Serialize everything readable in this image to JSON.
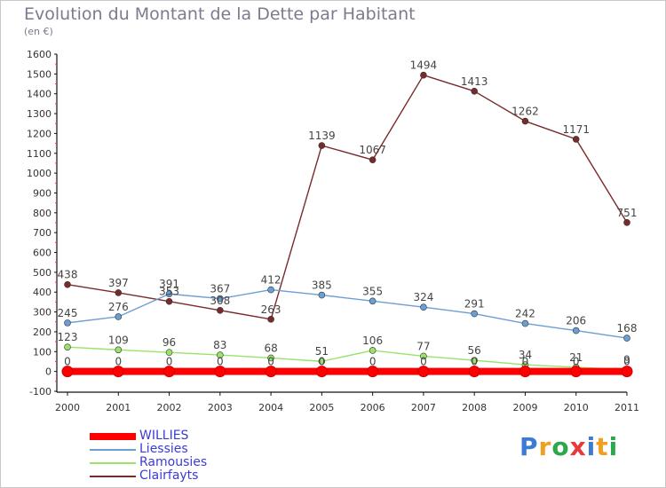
{
  "header": {
    "title": "Evolution du Montant de la Dette par Habitant",
    "subtitle": "(en €)"
  },
  "logo": {
    "text": "Proxiti",
    "colors": [
      "#3a7bd5",
      "#f0a020",
      "#2aa84a",
      "#e83a3a",
      "#3a7bd5",
      "#f0a020",
      "#2aa84a"
    ]
  },
  "chart_data": {
    "type": "line",
    "title": "Evolution du Montant de la Dette par Habitant",
    "subtitle": "(en €)",
    "xlabel": "",
    "ylabel": "",
    "x": [
      "2000",
      "2001",
      "2002",
      "2003",
      "2004",
      "2005",
      "2006",
      "2007",
      "2008",
      "2009",
      "2010",
      "2011"
    ],
    "ylim": [
      -100,
      1600
    ],
    "yticks": [
      "-100",
      "0",
      "100",
      "200",
      "300",
      "400",
      "500",
      "600",
      "700",
      "800",
      "900",
      "1000",
      "1100",
      "1200",
      "1300",
      "1400",
      "1500",
      "1600"
    ],
    "grid": false,
    "legend_position": "bottom-left",
    "series": [
      {
        "name": "WILLIES",
        "color": "#ff0000",
        "values": [
          0,
          0,
          0,
          0,
          0,
          0,
          0,
          0,
          0,
          0,
          0,
          0
        ],
        "labels": [
          "0",
          "0",
          "0",
          "0",
          "0",
          "0",
          "0",
          "0",
          "0",
          "0",
          "0",
          "0"
        ]
      },
      {
        "name": "Liessies",
        "color": "#6a9fd4",
        "values": [
          245,
          276,
          391,
          367,
          412,
          385,
          355,
          324,
          291,
          242,
          206,
          168
        ],
        "labels": [
          "245",
          "276",
          "391",
          "367",
          "412",
          "385",
          "355",
          "324",
          "291",
          "242",
          "206",
          "168"
        ]
      },
      {
        "name": "Ramousies",
        "color": "#99e36a",
        "values": [
          123,
          109,
          96,
          83,
          68,
          51,
          106,
          77,
          56,
          34,
          21,
          9
        ],
        "labels": [
          "123",
          "109",
          "96",
          "83",
          "68",
          "51",
          "106",
          "77",
          "56",
          "34",
          "21",
          "9"
        ]
      },
      {
        "name": "Clairfayts",
        "color": "#7a2a2a",
        "values": [
          438,
          397,
          353,
          308,
          263,
          1139,
          1067,
          1494,
          1413,
          1262,
          1171,
          751
        ],
        "labels": [
          "438",
          "397",
          "353",
          "308",
          "263",
          "1139",
          "1067",
          "1494",
          "1413",
          "1262",
          "1171",
          "751"
        ]
      }
    ]
  }
}
